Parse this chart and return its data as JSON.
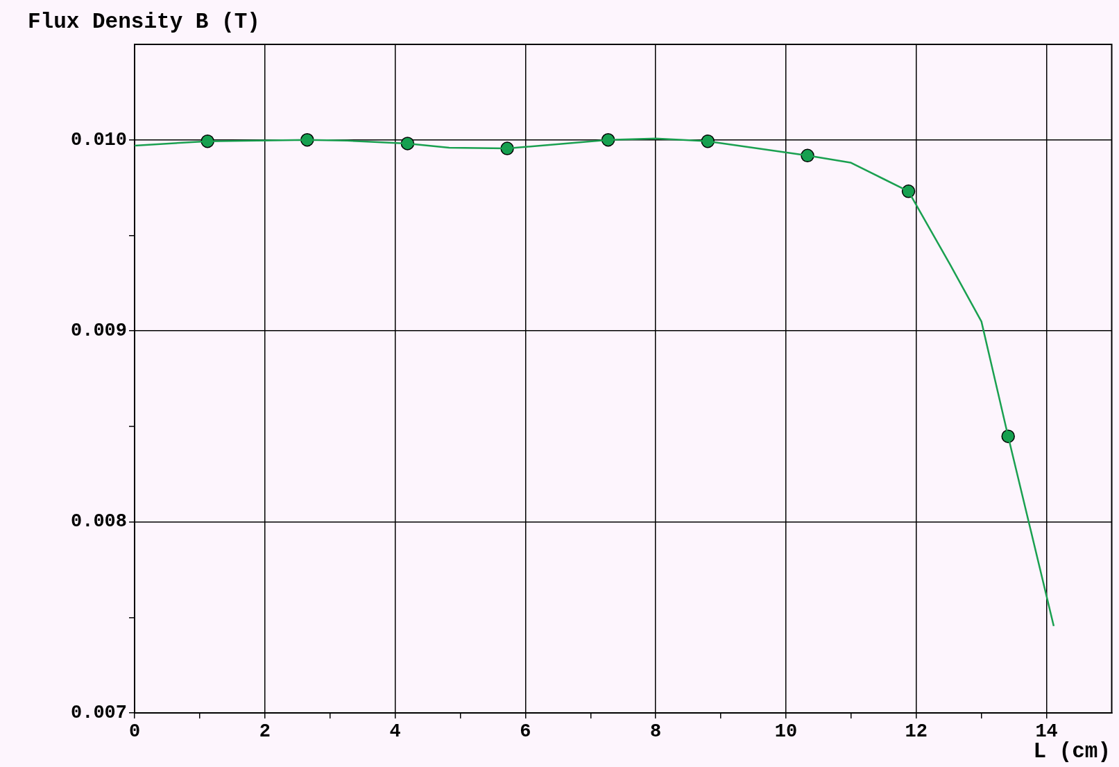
{
  "chart_data": {
    "type": "line",
    "xlabel": "L (cm)",
    "ylabel": "Flux Density B (T)",
    "xlim": [
      0,
      15
    ],
    "ylim": [
      0.007,
      0.0105
    ],
    "xticks": [
      0,
      {
        "value": 1,
        "label": null
      },
      2,
      {
        "value": 3,
        "label": null
      },
      4,
      {
        "value": 5,
        "label": null
      },
      6,
      {
        "value": 7,
        "label": null
      },
      8,
      {
        "value": 9,
        "label": null
      },
      10,
      {
        "value": 11,
        "label": null
      },
      12,
      {
        "value": 13,
        "label": null
      },
      14
    ],
    "yticks": [
      {
        "value": 0.007,
        "label": "0.007"
      },
      {
        "value": 0.0075,
        "label": null
      },
      {
        "value": 0.008,
        "label": "0.008"
      },
      {
        "value": 0.0085,
        "label": null
      },
      {
        "value": 0.009,
        "label": "0.009"
      },
      {
        "value": 0.0095,
        "label": null
      },
      {
        "value": 0.01,
        "label": "0.010"
      }
    ],
    "grid": true,
    "series": [
      {
        "marker": "none",
        "color": "#1aa050",
        "x": [
          0,
          1.12,
          2.65,
          3.26,
          4.19,
          4.83,
          5.72,
          7.27,
          8.0,
          8.8,
          10.33,
          10.99,
          11.88,
          12.52,
          13.0,
          13.41,
          13.75,
          14.11
        ],
        "values": [
          0.00997,
          0.009993,
          0.01,
          0.009996,
          0.009981,
          0.009959,
          0.009955,
          0.01,
          0.010007,
          0.009993,
          0.009918,
          0.009881,
          0.009731,
          0.009347,
          0.009049,
          0.008448,
          0.007966,
          0.007455
        ]
      },
      {
        "type": "scatter",
        "marker": "circle",
        "color": "#16a050",
        "x": [
          1.12,
          2.65,
          4.19,
          5.72,
          7.27,
          8.8,
          10.33,
          11.88,
          13.41
        ],
        "values": [
          0.009993,
          0.01,
          0.009981,
          0.009955,
          0.01,
          0.009993,
          0.009918,
          0.009731,
          0.008448
        ]
      }
    ]
  }
}
